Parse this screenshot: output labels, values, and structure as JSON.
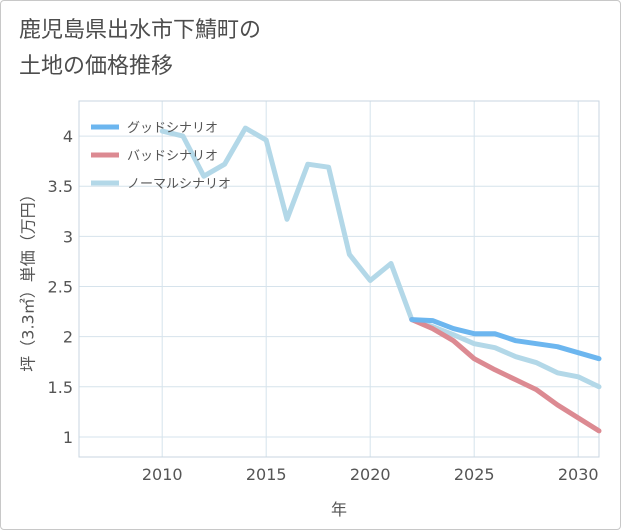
{
  "title": "鹿児島県出水市下鯖町の\n土地の価格推移",
  "chart_data": {
    "type": "line",
    "xlabel": "年",
    "ylabel": "坪（3.3㎡）単価（万円）",
    "xlim": [
      2006,
      2031
    ],
    "ylim": [
      0.8,
      4.35
    ],
    "xticks": [
      2010,
      2015,
      2020,
      2025,
      2030
    ],
    "yticks": [
      1,
      1.5,
      2,
      2.5,
      3,
      3.5,
      4
    ],
    "ytick_labels": [
      "1",
      "1.5",
      "2",
      "2.5",
      "3",
      "3.5",
      "4"
    ],
    "grid": true,
    "legend_position": "top-left",
    "series": [
      {
        "name": "グッドシナリオ",
        "color": "#6cb6ef",
        "points": [
          [
            2022,
            2.17
          ],
          [
            2023,
            2.16
          ],
          [
            2024,
            2.08
          ],
          [
            2025,
            2.03
          ],
          [
            2026,
            2.03
          ],
          [
            2027,
            1.96
          ],
          [
            2028,
            1.93
          ],
          [
            2029,
            1.9
          ],
          [
            2030,
            1.84
          ],
          [
            2031,
            1.78
          ]
        ]
      },
      {
        "name": "バッドシナリオ",
        "color": "#dc8a92",
        "points": [
          [
            2022,
            2.17
          ],
          [
            2023,
            2.08
          ],
          [
            2024,
            1.96
          ],
          [
            2025,
            1.78
          ],
          [
            2026,
            1.67
          ],
          [
            2027,
            1.57
          ],
          [
            2028,
            1.47
          ],
          [
            2029,
            1.32
          ],
          [
            2030,
            1.19
          ],
          [
            2031,
            1.06
          ]
        ]
      },
      {
        "name": "ノーマルシナリオ",
        "color": "#b3d8e8",
        "points": [
          [
            2010,
            4.05
          ],
          [
            2011,
            4.0
          ],
          [
            2012,
            3.6
          ],
          [
            2013,
            3.72
          ],
          [
            2014,
            4.08
          ],
          [
            2015,
            3.96
          ],
          [
            2016,
            3.17
          ],
          [
            2017,
            3.72
          ],
          [
            2018,
            3.69
          ],
          [
            2019,
            2.82
          ],
          [
            2020,
            2.56
          ],
          [
            2021,
            2.73
          ],
          [
            2022,
            2.17
          ],
          [
            2023,
            2.1
          ],
          [
            2024,
            2.02
          ],
          [
            2025,
            1.93
          ],
          [
            2026,
            1.89
          ],
          [
            2027,
            1.8
          ],
          [
            2028,
            1.74
          ],
          [
            2029,
            1.64
          ],
          [
            2030,
            1.6
          ],
          [
            2031,
            1.5
          ]
        ]
      }
    ]
  }
}
